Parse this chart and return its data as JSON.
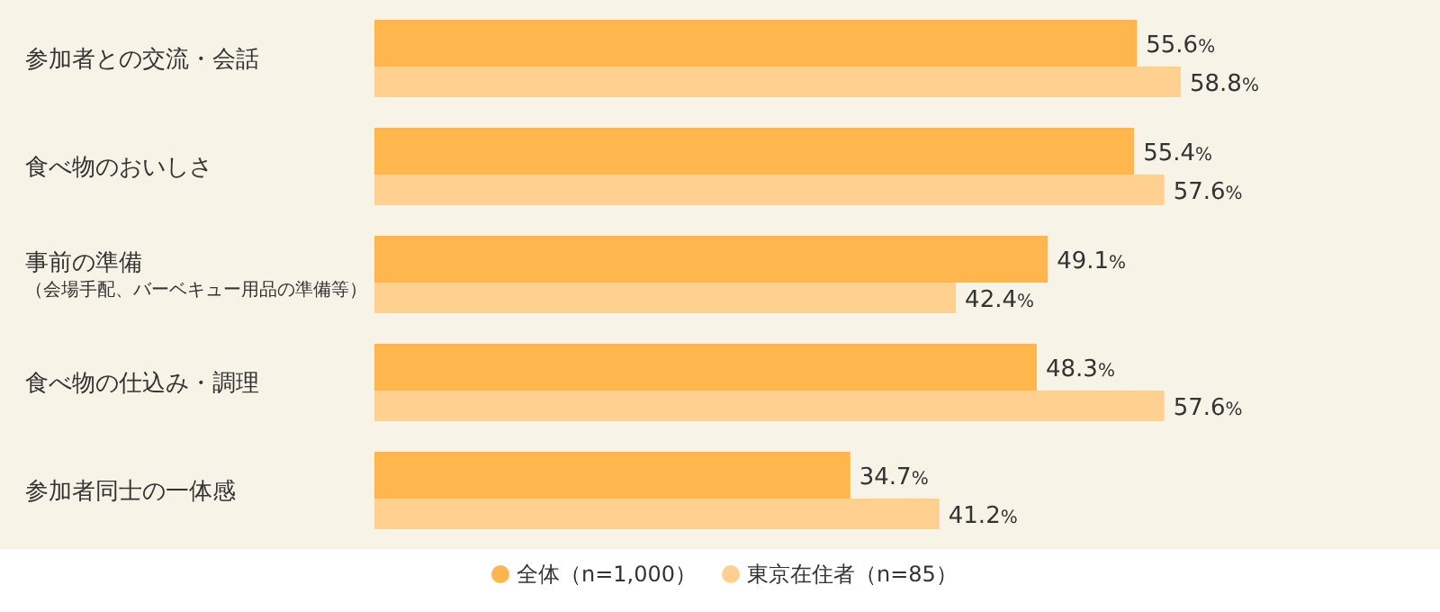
{
  "chart_data": {
    "type": "bar",
    "orientation": "horizontal",
    "legend": "bottom",
    "categories": [
      "参加者との交流・会話",
      "食べ物のおいしさ",
      "事前の準備（会場手配、バーベキュー用品の準備等）",
      "食べ物の仕込み・調理",
      "参加者同士の一体感"
    ],
    "series": [
      {
        "name": "全体（n=1,000）",
        "color": "#ffb74d",
        "values": [
          55.6,
          55.4,
          49.1,
          48.3,
          34.7
        ],
        "value_labels": [
          "55.6%",
          "55.4%",
          "49.1%",
          "48.3%",
          "34.7%"
        ]
      },
      {
        "name": "東京在住者（n=85）",
        "color": "#ffd08f",
        "values": [
          58.8,
          57.6,
          42.4,
          57.6,
          41.2
        ],
        "value_labels": [
          "58.8%",
          "57.6%",
          "42.4%",
          "57.6%",
          "41.2%"
        ]
      }
    ]
  }
}
